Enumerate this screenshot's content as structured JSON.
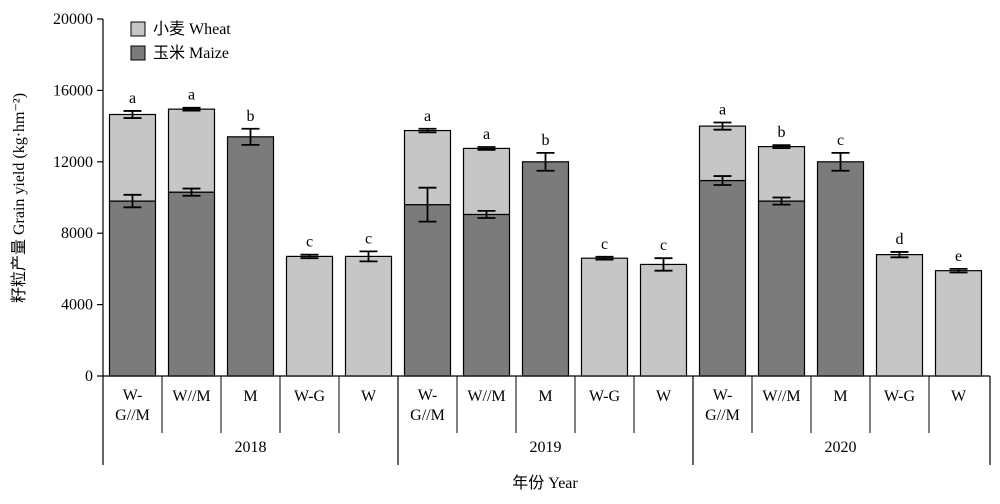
{
  "chart_data": {
    "type": "bar",
    "stacked": true,
    "ylabel": "籽粒产量 Grain yield (kg·hm⁻²)",
    "xlabel": "年份 Year",
    "ylim": [
      0,
      20000
    ],
    "yticks": [
      "0",
      "4000",
      "8000",
      "12000",
      "16000",
      "20000"
    ],
    "ytick_values": [
      0,
      4000,
      8000,
      12000,
      16000,
      20000
    ],
    "legend": {
      "placement": "top-left",
      "items": [
        {
          "name": "小麦 Wheat",
          "color": "#c6c6c6"
        },
        {
          "name": "玉米 Maize",
          "color": "#7b7b7b"
        }
      ]
    },
    "groups": [
      {
        "year": "2018",
        "bars": [
          {
            "label": [
              "W-",
              "G//M"
            ],
            "maize": 9800,
            "maize_err": 350,
            "total": 14650,
            "total_err": 200,
            "letter": "a"
          },
          {
            "label": [
              "W//M"
            ],
            "maize": 10300,
            "maize_err": 200,
            "total": 14950,
            "total_err": 80,
            "letter": "a"
          },
          {
            "label": [
              "M"
            ],
            "maize": 13400,
            "maize_err": 450,
            "total": 13400,
            "total_err": 450,
            "letter": "b"
          },
          {
            "label": [
              "W-G"
            ],
            "maize": 0,
            "maize_err": 0,
            "total": 6700,
            "total_err": 100,
            "letter": "c"
          },
          {
            "label": [
              "W"
            ],
            "maize": 0,
            "maize_err": 0,
            "total": 6700,
            "total_err": 280,
            "letter": "c"
          }
        ]
      },
      {
        "year": "2019",
        "bars": [
          {
            "label": [
              "W-",
              "G//M"
            ],
            "maize": 9600,
            "maize_err": 950,
            "total": 13750,
            "total_err": 100,
            "letter": "a"
          },
          {
            "label": [
              "W//M"
            ],
            "maize": 9050,
            "maize_err": 200,
            "total": 12750,
            "total_err": 80,
            "letter": "a"
          },
          {
            "label": [
              "M"
            ],
            "maize": 12000,
            "maize_err": 500,
            "total": 12000,
            "total_err": 500,
            "letter": "b"
          },
          {
            "label": [
              "W-G"
            ],
            "maize": 0,
            "maize_err": 0,
            "total": 6600,
            "total_err": 80,
            "letter": "c"
          },
          {
            "label": [
              "W"
            ],
            "maize": 0,
            "maize_err": 0,
            "total": 6250,
            "total_err": 350,
            "letter": "c"
          }
        ]
      },
      {
        "year": "2020",
        "bars": [
          {
            "label": [
              "W-",
              "G//M"
            ],
            "maize": 10950,
            "maize_err": 250,
            "total": 14000,
            "total_err": 200,
            "letter": "a"
          },
          {
            "label": [
              "W//M"
            ],
            "maize": 9800,
            "maize_err": 200,
            "total": 12850,
            "total_err": 80,
            "letter": "b"
          },
          {
            "label": [
              "M"
            ],
            "maize": 12000,
            "maize_err": 500,
            "total": 12000,
            "total_err": 500,
            "letter": "c"
          },
          {
            "label": [
              "W-G"
            ],
            "maize": 0,
            "maize_err": 0,
            "total": 6800,
            "total_err": 150,
            "letter": "d"
          },
          {
            "label": [
              "W"
            ],
            "maize": 0,
            "maize_err": 0,
            "total": 5900,
            "total_err": 100,
            "letter": "e"
          }
        ]
      }
    ]
  }
}
